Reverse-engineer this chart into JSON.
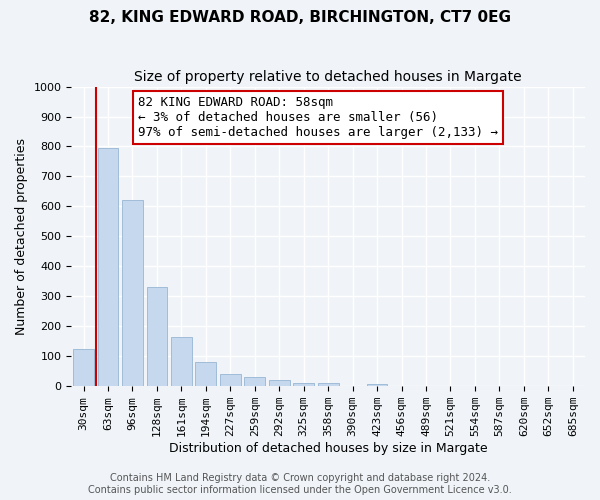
{
  "title": "82, KING EDWARD ROAD, BIRCHINGTON, CT7 0EG",
  "subtitle": "Size of property relative to detached houses in Margate",
  "xlabel": "Distribution of detached houses by size in Margate",
  "ylabel": "Number of detached properties",
  "bar_labels": [
    "30sqm",
    "63sqm",
    "96sqm",
    "128sqm",
    "161sqm",
    "194sqm",
    "227sqm",
    "259sqm",
    "292sqm",
    "325sqm",
    "358sqm",
    "390sqm",
    "423sqm",
    "456sqm",
    "489sqm",
    "521sqm",
    "554sqm",
    "587sqm",
    "620sqm",
    "652sqm",
    "685sqm"
  ],
  "bar_values": [
    125,
    795,
    620,
    330,
    163,
    80,
    42,
    30,
    20,
    12,
    10,
    0,
    8,
    0,
    0,
    0,
    0,
    0,
    0,
    0,
    0
  ],
  "bar_color": "#c5d8ed",
  "bar_edge_color": "#a0bcd8",
  "annotation_line1": "82 KING EDWARD ROAD: 58sqm",
  "annotation_line2": "← 3% of detached houses are smaller (56)",
  "annotation_line3": "97% of semi-detached houses are larger (2,133) →",
  "annotation_box_color": "#ffffff",
  "annotation_box_edge": "#cc0000",
  "property_vline_color": "#cc0000",
  "property_vline_x": 0.5,
  "ylim": [
    0,
    1000
  ],
  "yticks": [
    0,
    100,
    200,
    300,
    400,
    500,
    600,
    700,
    800,
    900,
    1000
  ],
  "footer1": "Contains HM Land Registry data © Crown copyright and database right 2024.",
  "footer2": "Contains public sector information licensed under the Open Government Licence v3.0.",
  "bg_color": "#f0f4f8",
  "plot_bg_color": "#f0f4f8",
  "grid_color": "#ffffff",
  "title_fontsize": 11,
  "subtitle_fontsize": 10,
  "axis_label_fontsize": 9,
  "tick_fontsize": 8,
  "annotation_fontsize": 9,
  "footer_fontsize": 7
}
